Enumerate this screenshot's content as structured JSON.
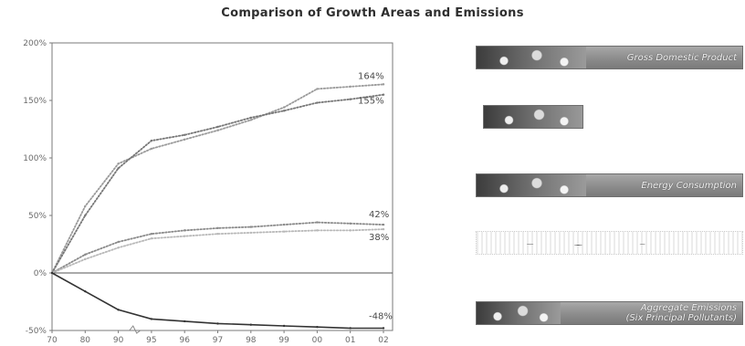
{
  "chart_data": {
    "type": "line",
    "title": "Comparison of Growth Areas and Emissions",
    "xlabel": "",
    "ylabel": "",
    "categories": [
      "70",
      "80",
      "90",
      "95",
      "96",
      "97",
      "98",
      "99",
      "00",
      "01",
      "02"
    ],
    "yticks": [
      "-50%",
      "0%",
      "50%",
      "100%",
      "150%",
      "200%"
    ],
    "ylim": [
      -50,
      200
    ],
    "grid": false,
    "series": [
      {
        "name": "",
        "color": "#9a9a9a",
        "style": "dotted",
        "values": [
          0,
          58,
          95,
          108,
          116,
          124,
          133,
          144,
          160,
          162,
          164
        ],
        "end_label": "164%"
      },
      {
        "name": "",
        "color": "#777777",
        "style": "dotted",
        "values": [
          0,
          50,
          91,
          115,
          120,
          127,
          135,
          141,
          148,
          151,
          155
        ],
        "end_label": "155%"
      },
      {
        "name": "",
        "color": "#8a8a8a",
        "style": "dotted",
        "values": [
          0,
          16,
          27,
          34,
          37,
          39,
          40,
          42,
          44,
          43,
          42
        ],
        "end_label": "42%"
      },
      {
        "name": "",
        "color": "#b8b8b8",
        "style": "dotted",
        "values": [
          0,
          12,
          22,
          30,
          32,
          34,
          35,
          36,
          37,
          37,
          38
        ],
        "end_label": "38%"
      },
      {
        "name": "",
        "color": "#333333",
        "style": "solid",
        "values": [
          0,
          -16,
          -32,
          -40,
          -42,
          -44,
          -45,
          -46,
          -47,
          -48,
          -48
        ],
        "end_label": "-48%"
      }
    ]
  },
  "legend": [
    {
      "label": "Gross Domestic Product",
      "style": "gray"
    },
    {
      "label": "",
      "style": "gray"
    },
    {
      "label": "Energy Consumption",
      "style": "gray"
    },
    {
      "label": "",
      "style": "white"
    },
    {
      "label": "Aggregate Emissions",
      "label2": "(Six Principal Pollutants)",
      "style": "gray"
    }
  ]
}
